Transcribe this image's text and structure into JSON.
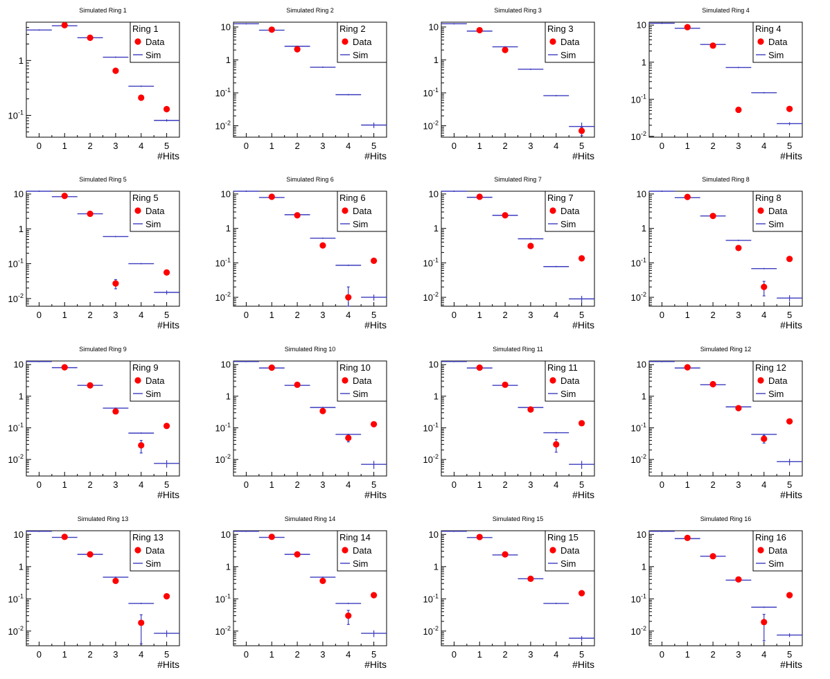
{
  "colors": {
    "data": "#ff0000",
    "sim": "#3b3bbf",
    "frame": "#000000"
  },
  "chart_data": {
    "type": "scatter",
    "y_scale": "log",
    "x_ticks": [
      "0",
      "1",
      "2",
      "3",
      "4",
      "5"
    ],
    "x_title": "#Hits",
    "y_tick_labels": {
      "exp-2": "10",
      "exp-1": "10",
      "sup-2": "-2",
      "sup-1": "-1",
      "one": "1",
      "ten": "10"
    },
    "legend": {
      "data_label": "Data",
      "sim_label": "Sim",
      "placement": "top-right"
    },
    "grid": false,
    "panels": [
      {
        "title": "Simulated Ring 1",
        "legend_title": "Ring 1",
        "ylim": [
          0.04,
          5.0
        ],
        "sim": [
          3.6,
          4.3,
          2.6,
          1.15,
          0.34,
          0.081
        ],
        "sim_err": [
          0,
          0,
          0,
          0,
          0.01,
          0.004
        ],
        "data": [
          null,
          4.4,
          2.6,
          0.65,
          0.21,
          0.13
        ],
        "data_err": [
          null,
          0,
          0,
          0,
          0.01,
          0.01
        ]
      },
      {
        "title": "Simulated Ring 2",
        "legend_title": "Ring 2",
        "ylim": [
          0.0045,
          14
        ],
        "sim": [
          12.5,
          8.0,
          2.6,
          0.6,
          0.088,
          0.0105
        ],
        "sim_err": [
          0,
          0,
          0,
          0,
          0,
          0.002
        ],
        "data": [
          null,
          8.3,
          2.1,
          null,
          null,
          null
        ],
        "data_err": [
          null,
          0,
          0,
          null,
          null,
          null
        ]
      },
      {
        "title": "Simulated Ring 3",
        "legend_title": "Ring 3",
        "ylim": [
          0.0045,
          14
        ],
        "sim": [
          12.5,
          7.5,
          2.5,
          0.52,
          0.082,
          0.0095
        ],
        "sim_err": [
          0,
          0,
          0,
          0,
          0,
          0.003
        ],
        "data": [
          null,
          8.0,
          2.0,
          null,
          null,
          0.007
        ],
        "data_err": [
          null,
          0,
          0,
          null,
          null,
          0.002
        ]
      },
      {
        "title": "Simulated Ring 4",
        "legend_title": "Ring 4",
        "ylim": [
          0.0095,
          12
        ],
        "sim": [
          11.2,
          8.2,
          3.0,
          0.72,
          0.15,
          0.022
        ],
        "sim_err": [
          0,
          0,
          0,
          0,
          0,
          0.002
        ],
        "data": [
          null,
          8.8,
          2.8,
          0.052,
          null,
          0.055
        ],
        "data_err": [
          null,
          0,
          0,
          0.008,
          null,
          0.004
        ]
      },
      {
        "title": "Simulated Ring 5",
        "legend_title": "Ring 5",
        "ylim": [
          0.006,
          12
        ],
        "sim": [
          12.0,
          8.4,
          2.7,
          0.6,
          0.1,
          0.015
        ],
        "sim_err": [
          0,
          0,
          0,
          0,
          0,
          0.002
        ],
        "data": [
          null,
          8.8,
          2.7,
          0.027,
          null,
          0.056
        ],
        "data_err": [
          null,
          0,
          0,
          0.008,
          null,
          0.004
        ]
      },
      {
        "title": "Simulated Ring 6",
        "legend_title": "Ring 6",
        "ylim": [
          0.0055,
          12
        ],
        "sim": [
          12.0,
          7.9,
          2.5,
          0.52,
          0.085,
          0.01
        ],
        "sim_err": [
          0,
          0,
          0,
          0,
          0,
          0.002
        ],
        "data": [
          null,
          8.3,
          2.4,
          0.32,
          0.01,
          0.115
        ],
        "data_err": [
          null,
          0,
          0,
          0,
          0.01,
          0
        ]
      },
      {
        "title": "Simulated Ring 7",
        "legend_title": "Ring 7",
        "ylim": [
          0.0055,
          12
        ],
        "sim": [
          12.0,
          8.0,
          2.4,
          0.5,
          0.078,
          0.009
        ],
        "sim_err": [
          0,
          0,
          0,
          0,
          0,
          0.002
        ],
        "data": [
          null,
          8.3,
          2.4,
          0.31,
          null,
          0.135
        ],
        "data_err": [
          null,
          0,
          0,
          0,
          null,
          0
        ]
      },
      {
        "title": "Simulated Ring 8",
        "legend_title": "Ring 8",
        "ylim": [
          0.0055,
          12
        ],
        "sim": [
          12.0,
          7.8,
          2.3,
          0.45,
          0.068,
          0.0095
        ],
        "sim_err": [
          0,
          0,
          0,
          0,
          0,
          0.002
        ],
        "data": [
          null,
          8.2,
          2.3,
          0.27,
          0.02,
          0.13
        ],
        "data_err": [
          null,
          0,
          0,
          0,
          0.009,
          0
        ]
      },
      {
        "title": "Simulated Ring 9",
        "legend_title": "Ring 9",
        "ylim": [
          0.003,
          13
        ],
        "sim": [
          12.5,
          8.0,
          2.2,
          0.42,
          0.068,
          0.0075
        ],
        "sim_err": [
          0,
          0,
          0,
          0,
          0,
          0.002
        ],
        "data": [
          null,
          8.2,
          2.2,
          0.33,
          0.028,
          0.115
        ],
        "data_err": [
          null,
          0,
          0,
          0,
          0.012,
          0
        ]
      },
      {
        "title": "Simulated Ring 10",
        "legend_title": "Ring 10",
        "ylim": [
          0.003,
          13
        ],
        "sim": [
          12.5,
          7.8,
          2.2,
          0.44,
          0.062,
          0.007
        ],
        "sim_err": [
          0,
          0,
          0,
          0,
          0,
          0.002
        ],
        "data": [
          null,
          8.0,
          2.3,
          0.34,
          0.048,
          0.13
        ],
        "data_err": [
          null,
          0,
          0,
          0,
          0.012,
          0
        ]
      },
      {
        "title": "Simulated Ring 11",
        "legend_title": "Ring 11",
        "ylim": [
          0.003,
          13
        ],
        "sim": [
          12.5,
          7.8,
          2.2,
          0.44,
          0.07,
          0.007
        ],
        "sim_err": [
          0,
          0,
          0,
          0,
          0,
          0.002
        ],
        "data": [
          null,
          8.0,
          2.3,
          0.38,
          0.03,
          0.14
        ],
        "data_err": [
          null,
          0,
          0,
          0,
          0.013,
          0
        ]
      },
      {
        "title": "Simulated Ring 12",
        "legend_title": "Ring 12",
        "ylim": [
          0.003,
          13
        ],
        "sim": [
          12.5,
          7.8,
          2.3,
          0.46,
          0.062,
          0.0085
        ],
        "sim_err": [
          0,
          0,
          0,
          0,
          0,
          0.002
        ],
        "data": [
          null,
          8.2,
          2.4,
          0.42,
          0.045,
          0.16
        ],
        "data_err": [
          null,
          0,
          0,
          0,
          0.012,
          0
        ]
      },
      {
        "title": "Simulated Ring 13",
        "legend_title": "Ring 13",
        "ylim": [
          0.0035,
          13
        ],
        "sim": [
          12.5,
          8.1,
          2.4,
          0.47,
          0.072,
          0.0085
        ],
        "sim_err": [
          0,
          0,
          0,
          0,
          0,
          0.002
        ],
        "data": [
          null,
          8.4,
          2.4,
          0.36,
          0.018,
          0.12
        ],
        "data_err": [
          null,
          0,
          0,
          0,
          0.014,
          0
        ]
      },
      {
        "title": "Simulated Ring 14",
        "legend_title": "Ring 14",
        "ylim": [
          0.0035,
          13
        ],
        "sim": [
          12.5,
          8.1,
          2.4,
          0.47,
          0.072,
          0.0085
        ],
        "sim_err": [
          0,
          0,
          0,
          0,
          0,
          0.002
        ],
        "data": [
          null,
          8.4,
          2.4,
          0.36,
          0.03,
          0.13
        ],
        "data_err": [
          null,
          0,
          0,
          0,
          0.014,
          0
        ]
      },
      {
        "title": "Simulated Ring 15",
        "legend_title": "Ring 15",
        "ylim": [
          0.0035,
          13
        ],
        "sim": [
          12.5,
          8.0,
          2.3,
          0.42,
          0.072,
          0.006
        ],
        "sim_err": [
          0,
          0,
          0,
          0,
          0,
          0.001
        ],
        "data": [
          null,
          8.3,
          2.4,
          0.42,
          null,
          0.15
        ],
        "data_err": [
          null,
          0,
          0,
          0,
          null,
          0
        ]
      },
      {
        "title": "Simulated Ring 16",
        "legend_title": "Ring 16",
        "ylim": [
          0.0035,
          13
        ],
        "sim": [
          12.5,
          7.4,
          2.1,
          0.38,
          0.055,
          0.0075
        ],
        "sim_err": [
          0,
          0,
          0,
          0,
          0,
          0.001
        ],
        "data": [
          null,
          7.8,
          2.1,
          0.4,
          0.019,
          0.13
        ],
        "data_err": [
          null,
          0,
          0,
          0,
          0.014,
          0
        ]
      }
    ]
  }
}
